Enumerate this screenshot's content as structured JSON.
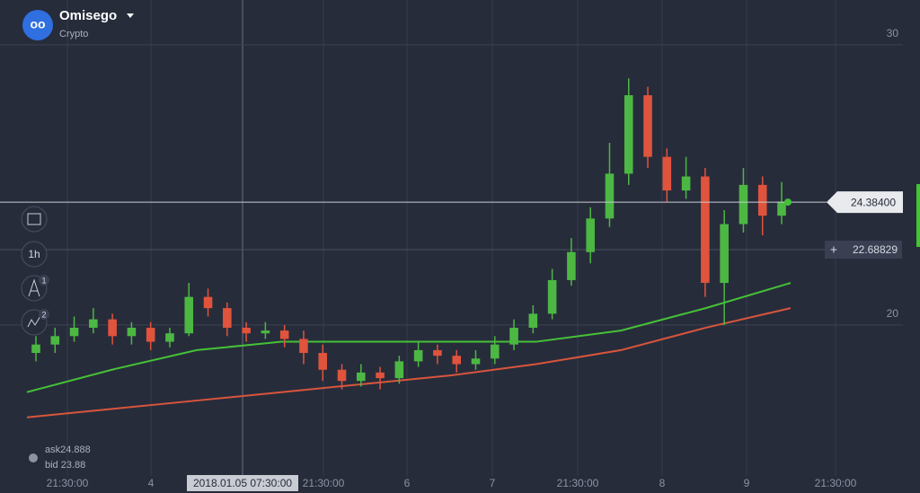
{
  "header": {
    "title": "Omisego",
    "subtitle": "Crypto"
  },
  "toolbar": {
    "interval": "1h",
    "badges": [
      "1",
      "2"
    ]
  },
  "quotes": {
    "ask": "ask24.888",
    "bid": "bid 23.88"
  },
  "chart_data": {
    "type": "candlestick",
    "candles": [
      [
        19.0,
        19.6,
        18.7,
        19.3
      ],
      [
        19.3,
        19.9,
        19.0,
        19.6
      ],
      [
        19.6,
        20.3,
        19.4,
        19.9
      ],
      [
        19.9,
        20.6,
        19.7,
        20.2
      ],
      [
        20.2,
        20.4,
        19.3,
        19.6
      ],
      [
        19.6,
        20.1,
        19.3,
        19.9
      ],
      [
        19.9,
        20.1,
        19.1,
        19.4
      ],
      [
        19.4,
        19.9,
        19.2,
        19.7
      ],
      [
        19.7,
        21.5,
        19.6,
        21.0
      ],
      [
        21.0,
        21.3,
        20.3,
        20.6
      ],
      [
        20.6,
        20.8,
        19.6,
        19.9
      ],
      [
        19.9,
        20.1,
        19.4,
        19.7
      ],
      [
        19.7,
        20.1,
        19.5,
        19.8
      ],
      [
        19.8,
        20.0,
        19.2,
        19.5
      ],
      [
        19.5,
        19.8,
        18.6,
        19.0
      ],
      [
        19.0,
        19.3,
        18.0,
        18.4
      ],
      [
        18.4,
        18.6,
        17.7,
        18.0
      ],
      [
        18.0,
        18.6,
        17.8,
        18.3
      ],
      [
        18.3,
        18.5,
        17.7,
        18.1
      ],
      [
        18.1,
        18.9,
        17.9,
        18.7
      ],
      [
        18.7,
        19.4,
        18.5,
        19.1
      ],
      [
        19.1,
        19.3,
        18.6,
        18.9
      ],
      [
        18.9,
        19.1,
        18.3,
        18.6
      ],
      [
        18.6,
        19.1,
        18.4,
        18.8
      ],
      [
        18.8,
        19.6,
        18.6,
        19.3
      ],
      [
        19.3,
        20.2,
        19.1,
        19.9
      ],
      [
        19.9,
        20.7,
        19.7,
        20.4
      ],
      [
        20.4,
        22.0,
        20.2,
        21.6
      ],
      [
        21.6,
        23.1,
        21.4,
        22.6
      ],
      [
        22.6,
        24.2,
        22.2,
        23.8
      ],
      [
        23.8,
        26.5,
        23.5,
        25.4
      ],
      [
        25.4,
        28.8,
        25.0,
        28.2
      ],
      [
        28.2,
        28.5,
        25.6,
        26.0
      ],
      [
        26.0,
        26.3,
        24.4,
        24.8
      ],
      [
        24.8,
        26.0,
        24.5,
        25.3
      ],
      [
        25.3,
        25.6,
        21.0,
        21.5
      ],
      [
        21.5,
        24.1,
        20.0,
        23.6
      ],
      [
        23.6,
        25.6,
        23.3,
        25.0
      ],
      [
        25.0,
        25.3,
        23.2,
        23.9
      ],
      [
        23.9,
        25.1,
        23.6,
        24.4
      ]
    ],
    "moving_averages": [
      {
        "color": "#45c236",
        "values": [
          17.6,
          18.4,
          19.1,
          19.4,
          19.4,
          19.4,
          19.4,
          19.8,
          20.6,
          21.5
        ]
      },
      {
        "color": "#d9553c",
        "values": [
          16.7,
          17.0,
          17.3,
          17.6,
          17.9,
          18.2,
          18.6,
          19.1,
          19.9,
          20.6
        ]
      }
    ],
    "ylim": [
      14,
      31.6
    ],
    "yticks": [
      20,
      30
    ],
    "x_labels": [
      "21:30:00",
      "4",
      "2018.01.05 07:30:00",
      "21:30:00",
      "6",
      "7",
      "21:30:00",
      "8",
      "9",
      "21:30:00"
    ],
    "current_price": {
      "value": 24.384,
      "label": "24.38400"
    },
    "cursor_price": {
      "value": 22.68829,
      "label": "22.68829"
    }
  }
}
